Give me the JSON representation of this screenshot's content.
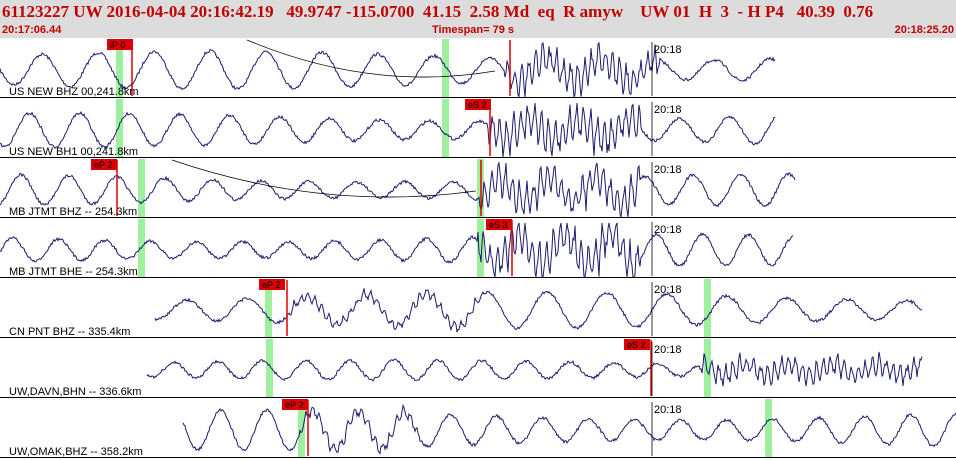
{
  "header": {
    "event_line": "61123227 UW 2016-04-04 20:16:42.19   49.9747 -115.0700  41.15  2.58 Md  eq  R amyw    UW 01  H  3  - H P4   40.39  0.76",
    "start_time": "20:17:06.44",
    "timespan": "Timespan=  79 s",
    "end_time": "20:18:25.20"
  },
  "colors": {
    "trace": "#1c1c6e",
    "pick": "#e00000",
    "pick_label_bg": "#dd0000",
    "window": "#9ef09e",
    "header_bg": "#dcdcdc",
    "header_text": "#c00000"
  },
  "channels": [
    {
      "label": "US NEW BHZ 00,241.8km",
      "time_label": "20:18",
      "picks": [
        {
          "text": "iP 0"
        },
        {
          "text": ""
        }
      ]
    },
    {
      "label": "US NEW BH1 00,241.8km",
      "time_label": "20:18",
      "picks": [
        {
          "text": "eS 2"
        }
      ]
    },
    {
      "label": "MB JTMT BHZ -- 254.3km",
      "time_label": "20:18",
      "picks": [
        {
          "text": "eP 2"
        },
        {
          "text": ""
        }
      ]
    },
    {
      "label": "MB JTMT BHE -- 254.3km",
      "time_label": "20:18",
      "picks": [
        {
          "text": "eS 3"
        }
      ]
    },
    {
      "label": "CN PNT BHZ -- 335.4km",
      "time_label": "20:18",
      "picks": [
        {
          "text": "eP 2"
        }
      ]
    },
    {
      "label": "UW,DAVN,BHN -- 336.6km",
      "time_label": "20:18",
      "picks": [
        {
          "text": "eS 2"
        }
      ]
    },
    {
      "label": "UW,OMAK,BHZ -- 358.2km",
      "time_label": "20:18",
      "picks": [
        {
          "text": "eP 2"
        }
      ]
    }
  ]
}
